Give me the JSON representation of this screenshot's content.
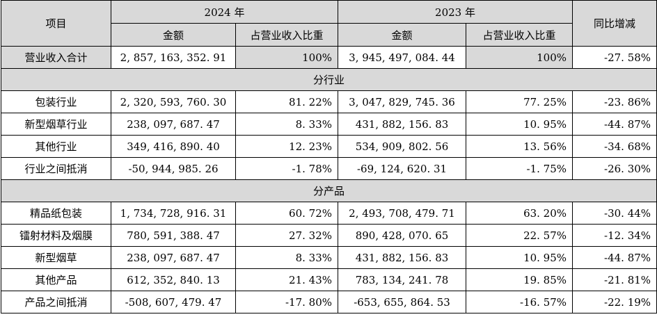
{
  "header": {
    "item": "项目",
    "year_2024": "2024 年",
    "year_2023": "2023 年",
    "yoy": "同比增减",
    "amount": "金额",
    "ratio": "占营业收入比重"
  },
  "total": {
    "label": "营业收入合计",
    "amt_2024": "2, 857, 163, 352. 91",
    "ratio_2024": "100%",
    "amt_2023": "3, 945, 497, 084. 44",
    "ratio_2023": "100%",
    "yoy": "-27. 58%"
  },
  "section_industry": "分行业",
  "industry_rows": [
    {
      "label": "包装行业",
      "amt_2024": "2, 320, 593, 760. 30",
      "ratio_2024": "81. 22%",
      "amt_2023": "3, 047, 829, 745. 36",
      "ratio_2023": "77. 25%",
      "yoy": "-23. 86%"
    },
    {
      "label": "新型烟草行业",
      "amt_2024": "238, 097, 687. 47",
      "ratio_2024": "8. 33%",
      "amt_2023": "431, 882, 156. 83",
      "ratio_2023": "10. 95%",
      "yoy": "-44. 87%"
    },
    {
      "label": "其他行业",
      "amt_2024": "349, 416, 890. 40",
      "ratio_2024": "12. 23%",
      "amt_2023": "534, 909, 802. 56",
      "ratio_2023": "13. 56%",
      "yoy": "-34. 68%"
    },
    {
      "label": "行业之间抵消",
      "amt_2024": "-50, 944, 985. 26",
      "ratio_2024": "-1. 78%",
      "amt_2023": "-69, 124, 620. 31",
      "ratio_2023": "-1. 75%",
      "yoy": "-26. 30%"
    }
  ],
  "section_product": "分产品",
  "product_rows": [
    {
      "label": "精品纸包装",
      "amt_2024": "1, 734, 728, 916. 31",
      "ratio_2024": "60. 72%",
      "amt_2023": "2, 493, 708, 479. 71",
      "ratio_2023": "63. 20%",
      "yoy": "-30. 44%"
    },
    {
      "label": "镭射材料及烟膜",
      "amt_2024": "780, 591, 388. 47",
      "ratio_2024": "27. 32%",
      "amt_2023": "890, 428, 070. 65",
      "ratio_2023": "22. 57%",
      "yoy": "-12. 34%"
    },
    {
      "label": "新型烟草",
      "amt_2024": "238, 097, 687. 47",
      "ratio_2024": "8. 33%",
      "amt_2023": "431, 882, 156. 83",
      "ratio_2023": "10. 95%",
      "yoy": "-44. 87%"
    },
    {
      "label": "其他产品",
      "amt_2024": "612, 352, 840. 13",
      "ratio_2024": "21. 43%",
      "amt_2023": "783, 134, 241. 78",
      "ratio_2023": "19. 85%",
      "yoy": "-21. 81%"
    },
    {
      "label": "产品之间抵消",
      "amt_2024": "-508, 607, 479. 47",
      "ratio_2024": "-17. 80%",
      "amt_2023": "-653, 655, 864. 53",
      "ratio_2023": "-16. 57%",
      "yoy": "-22. 19%"
    }
  ]
}
